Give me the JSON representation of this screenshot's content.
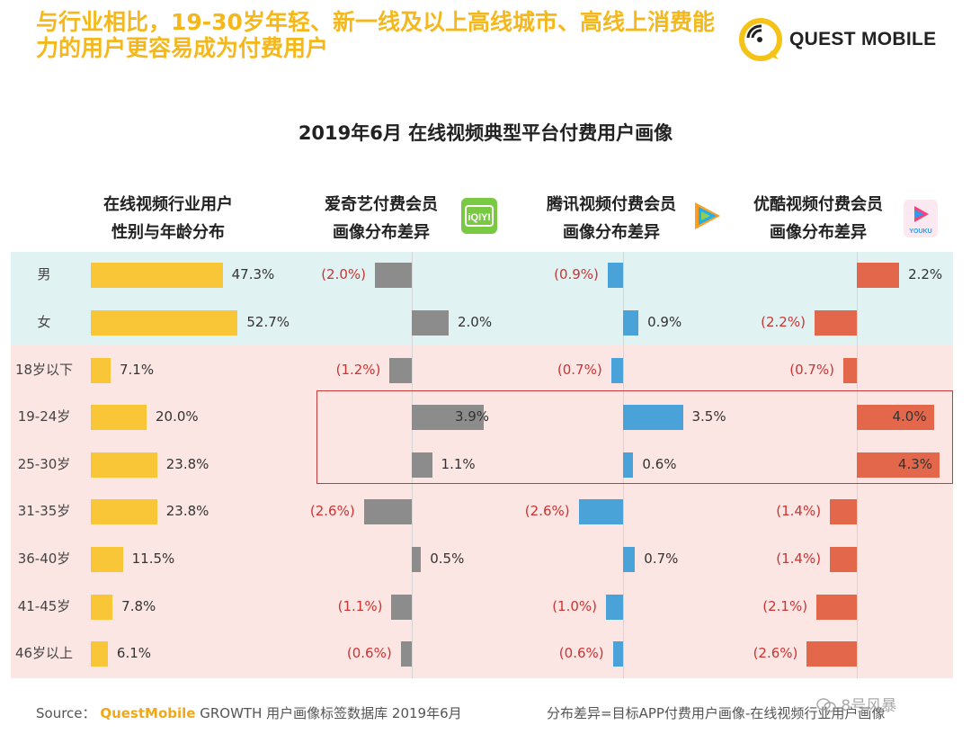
{
  "header": {
    "title": "与行业相比，19-30岁年轻、新一线及以上高线城市、高线上消费能力的用户更容易成为付费用户",
    "brand": "QUEST MOBILE"
  },
  "chart_data": {
    "type": "bar",
    "title": "2019年6月 在线视频典型平台付费用户画像",
    "categories": [
      "男",
      "女",
      "18岁以下",
      "19-24岁",
      "25-30岁",
      "31-35岁",
      "36-40岁",
      "41-45岁",
      "46岁以上"
    ],
    "series": [
      {
        "name": "在线视频行业用户 性别与年龄分布",
        "name_lines": [
          "在线视频行业用户",
          "性别与年龄分布"
        ],
        "values": [
          47.3,
          52.7,
          7.1,
          20.0,
          23.8,
          23.8,
          11.5,
          7.8,
          6.1
        ],
        "labels": [
          "47.3%",
          "52.7%",
          "7.1%",
          "20.0%",
          "23.8%",
          "23.8%",
          "11.5%",
          "7.8%",
          "6.1%"
        ],
        "color": "#f8c637"
      },
      {
        "name": "爱奇艺付费会员 画像分布差异",
        "name_lines": [
          "爱奇艺付费会员",
          "画像分布差异"
        ],
        "values": [
          -2.0,
          2.0,
          -1.2,
          3.9,
          1.1,
          -2.6,
          0.5,
          -1.1,
          -0.6
        ],
        "labels": [
          "(2.0%)",
          "2.0%",
          "(1.2%)",
          "3.9%",
          "1.1%",
          "(2.6%)",
          "0.5%",
          "(1.1%)",
          "(0.6%)"
        ],
        "color": "#8c8c8c"
      },
      {
        "name": "腾讯视频付费会员 画像分布差异",
        "name_lines": [
          "腾讯视频付费会员",
          "画像分布差异"
        ],
        "values": [
          -0.9,
          0.9,
          -0.7,
          3.5,
          0.6,
          -2.6,
          0.7,
          -1.0,
          -0.6
        ],
        "labels": [
          "(0.9%)",
          "0.9%",
          "(0.7%)",
          "3.5%",
          "0.6%",
          "(2.6%)",
          "0.7%",
          "(1.0%)",
          "(0.6%)"
        ],
        "color": "#4aa3d8"
      },
      {
        "name": "优酷视频付费会员 画像分布差异",
        "name_lines": [
          "优酷视频付费会员",
          "画像分布差异"
        ],
        "values": [
          2.2,
          -2.2,
          -0.7,
          4.0,
          4.3,
          -1.4,
          -1.4,
          -2.1,
          -2.6
        ],
        "labels": [
          "2.2%",
          "(2.2%)",
          "(0.7%)",
          "4.0%",
          "4.3%",
          "(1.4%)",
          "(1.4%)",
          "(2.1%)",
          "(2.6%)"
        ],
        "color": "#e3674a"
      }
    ],
    "negative_label_color": "#cc3333",
    "highlight_categories": [
      "19-24岁",
      "25-30岁"
    ],
    "highlight_color": "#c73a3a",
    "band_colors": {
      "gender": "#e1f2f2",
      "age": "#fbe6e3"
    },
    "app_icons": [
      "iqiyi-icon",
      "tencent-video-icon",
      "youku-icon"
    ],
    "icon_text": {
      "iqiyi": "iQIYI",
      "youku": "YOUKU"
    }
  },
  "footer": {
    "source_prefix": "Source：",
    "source_brand": "QuestMobile",
    "source_rest": "GROWTH 用户画像标签数据库 2019年6月",
    "note": "分布差异=目标APP付费用户画像-在线视频行业用户画像"
  },
  "watermark": "8号风暴"
}
